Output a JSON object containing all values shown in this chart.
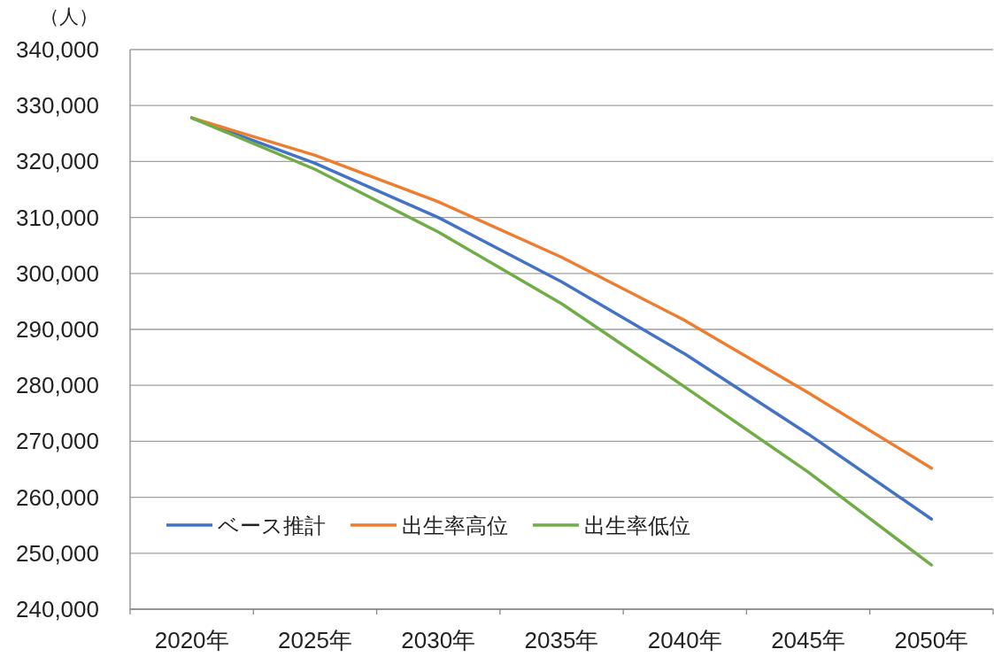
{
  "chart_data": {
    "type": "line",
    "ylabel": "（人）",
    "categories": [
      "2020年",
      "2025年",
      "2030年",
      "2035年",
      "2040年",
      "2045年",
      "2050年"
    ],
    "series": [
      {
        "name": "ベース推計",
        "color": "#4472c4",
        "values": [
          327800,
          319700,
          310000,
          298500,
          285600,
          271300,
          256100
        ]
      },
      {
        "name": "出生率高位",
        "color": "#ed7d31",
        "values": [
          327800,
          321100,
          312800,
          302900,
          291600,
          278700,
          265200
        ]
      },
      {
        "name": "出生率低位",
        "color": "#70ad47",
        "values": [
          327800,
          318600,
          307400,
          294600,
          279700,
          264500,
          247900
        ]
      }
    ],
    "ylim": [
      240000,
      340000
    ],
    "yticks": [
      {
        "value": 240000,
        "label": "240,000"
      },
      {
        "value": 250000,
        "label": "250,000"
      },
      {
        "value": 260000,
        "label": "260,000"
      },
      {
        "value": 270000,
        "label": "270,000"
      },
      {
        "value": 280000,
        "label": "280,000"
      },
      {
        "value": 290000,
        "label": "290,000"
      },
      {
        "value": 300000,
        "label": "300,000"
      },
      {
        "value": 310000,
        "label": "310,000"
      },
      {
        "value": 320000,
        "label": "320,000"
      },
      {
        "value": 330000,
        "label": "330,000"
      },
      {
        "value": 340000,
        "label": "340,000"
      }
    ],
    "grid": "y",
    "legend": "bottom left",
    "marker": "none",
    "line_style": "solid"
  }
}
